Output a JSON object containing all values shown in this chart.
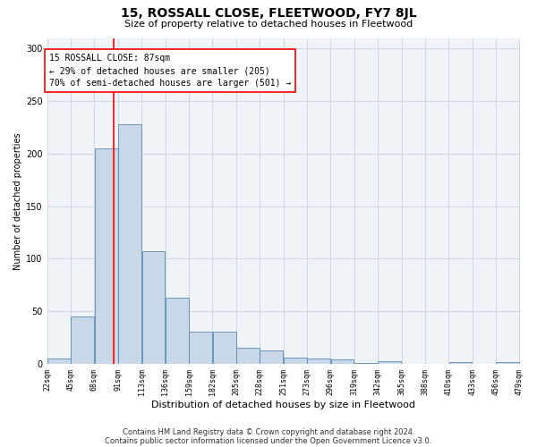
{
  "title": "15, ROSSALL CLOSE, FLEETWOOD, FY7 8JL",
  "subtitle": "Size of property relative to detached houses in Fleetwood",
  "xlabel": "Distribution of detached houses by size in Fleetwood",
  "ylabel": "Number of detached properties",
  "bar_color": "#c8d8e8",
  "bar_edge_color": "#5a8ab0",
  "grid_color": "#d0d8e0",
  "background_color": "#f0f4f8",
  "red_line_x": 87,
  "bin_width": 23,
  "bin_starts": [
    22,
    45,
    68,
    91,
    114,
    137,
    160,
    183,
    206,
    229,
    252,
    275,
    298,
    321,
    344,
    367,
    390,
    413,
    436,
    459
  ],
  "bar_heights": [
    5,
    45,
    205,
    228,
    107,
    63,
    31,
    31,
    15,
    13,
    6,
    5,
    4,
    1,
    3,
    0,
    0,
    2,
    0,
    2
  ],
  "tick_labels": [
    "22sqm",
    "45sqm",
    "68sqm",
    "91sqm",
    "113sqm",
    "136sqm",
    "159sqm",
    "182sqm",
    "205sqm",
    "228sqm",
    "251sqm",
    "273sqm",
    "296sqm",
    "319sqm",
    "342sqm",
    "365sqm",
    "388sqm",
    "410sqm",
    "433sqm",
    "456sqm",
    "479sqm"
  ],
  "annotation_line1": "15 ROSSALL CLOSE: 87sqm",
  "annotation_line2": "← 29% of detached houses are smaller (205)",
  "annotation_line3": "70% of semi-detached houses are larger (501) →",
  "footnote1": "Contains HM Land Registry data © Crown copyright and database right 2024.",
  "footnote2": "Contains public sector information licensed under the Open Government Licence v3.0.",
  "ylim": [
    0,
    310
  ],
  "yticks": [
    0,
    50,
    100,
    150,
    200,
    250,
    300
  ],
  "title_fontsize": 10,
  "subtitle_fontsize": 8,
  "xlabel_fontsize": 8,
  "ylabel_fontsize": 7,
  "tick_fontsize": 6,
  "ytick_fontsize": 7,
  "annot_fontsize": 7,
  "footnote_fontsize": 6
}
